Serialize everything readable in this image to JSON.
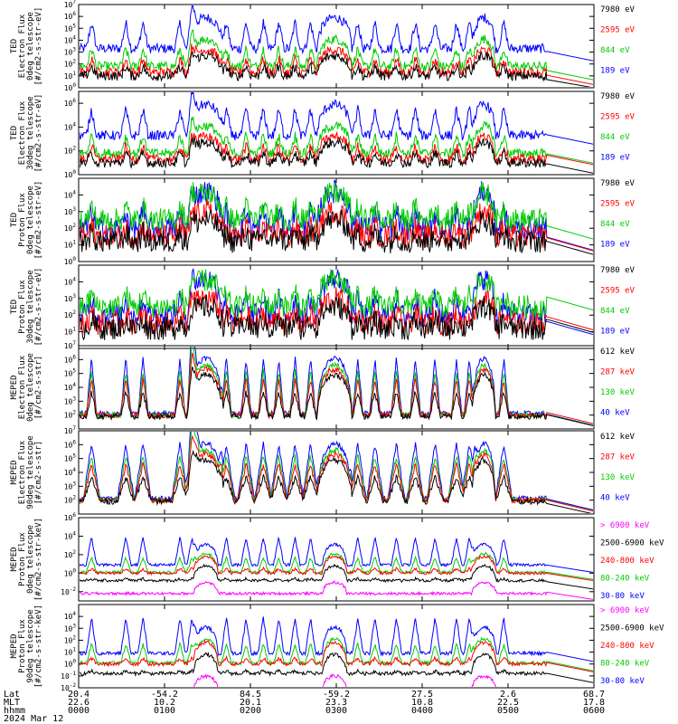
{
  "chart_data": {
    "type": "line",
    "colors": {
      "blue": "#0000ff",
      "red": "#ff0000",
      "green": "#00cc00",
      "black": "#000000",
      "magenta": "#ff00ff"
    },
    "panels": [
      {
        "ylabel": [
          "TED",
          "Electron Flux",
          "0deg telescope",
          "[#/cm2-s-str-eV]"
        ],
        "yscale": "log",
        "ylim_exp": [
          0,
          7
        ],
        "yticks_exp": [
          0,
          1,
          2,
          3,
          4,
          5,
          6,
          7
        ],
        "legend": [
          {
            "label": "7980 eV",
            "color": "#000000"
          },
          {
            "label": "2595 eV",
            "color": "#ff0000"
          },
          {
            "label": "844 eV",
            "color": "#00cc00"
          },
          {
            "label": "189 eV",
            "color": "#0000ff"
          }
        ]
      },
      {
        "ylabel": [
          "TED",
          "Electron Flux",
          "30deg telescope",
          "[#/cm2-s-str-eV]"
        ],
        "yscale": "log",
        "ylim_exp": [
          0,
          7
        ],
        "yticks_exp": [
          0,
          2,
          4,
          6
        ],
        "legend": [
          {
            "label": "7980 eV",
            "color": "#000000"
          },
          {
            "label": "2595 eV",
            "color": "#ff0000"
          },
          {
            "label": "844 eV",
            "color": "#00cc00"
          },
          {
            "label": "189 eV",
            "color": "#0000ff"
          }
        ]
      },
      {
        "ylabel": [
          "TED",
          "Proton Flux",
          "0deg telescope",
          "[#/cm2-s-str-eV]"
        ],
        "yscale": "log",
        "ylim_exp": [
          0,
          5
        ],
        "yticks_exp": [
          0,
          1,
          2,
          3,
          4
        ],
        "legend": [
          {
            "label": "7980 eV",
            "color": "#000000"
          },
          {
            "label": "2595 eV",
            "color": "#ff0000"
          },
          {
            "label": "844 eV",
            "color": "#00cc00"
          },
          {
            "label": "189 eV",
            "color": "#0000ff"
          }
        ]
      },
      {
        "ylabel": [
          "TED",
          "Proton Flux",
          "30deg telescope",
          "[#/cm2-s-str-eV]"
        ],
        "yscale": "log",
        "ylim_exp": [
          0,
          5
        ],
        "yticks_exp": [
          1,
          2,
          3,
          4
        ],
        "legend": [
          {
            "label": "7980 eV",
            "color": "#000000"
          },
          {
            "label": "2595 eV",
            "color": "#ff0000"
          },
          {
            "label": "844 eV",
            "color": "#00cc00"
          },
          {
            "label": "189 eV",
            "color": "#0000ff"
          }
        ]
      },
      {
        "ylabel": [
          "MEPED",
          "Electron Flux",
          "0deg telescope",
          "[#/cm2-s-str]"
        ],
        "yscale": "log",
        "ylim_exp": [
          1,
          7
        ],
        "yticks_exp": [
          2,
          3,
          4,
          5,
          6,
          7
        ],
        "legend": [
          {
            "label": "612 keV",
            "color": "#000000"
          },
          {
            "label": "287 keV",
            "color": "#ff0000"
          },
          {
            "label": "130 keV",
            "color": "#00cc00"
          },
          {
            "label": "40 keV",
            "color": "#0000ff"
          }
        ]
      },
      {
        "ylabel": [
          "MEPED",
          "Electron Flux",
          "90deg telescope",
          "[#/cm2-s-str]"
        ],
        "yscale": "log",
        "ylim_exp": [
          1,
          7
        ],
        "yticks_exp": [
          2,
          3,
          4,
          5,
          6,
          7
        ],
        "legend": [
          {
            "label": "612 keV",
            "color": "#000000"
          },
          {
            "label": "287 keV",
            "color": "#ff0000"
          },
          {
            "label": "130 keV",
            "color": "#00cc00"
          },
          {
            "label": "40 keV",
            "color": "#0000ff"
          }
        ]
      },
      {
        "ylabel": [
          "MEPED",
          "Proton Flux",
          "0deg telescope",
          "[#/cm2-s-str-keV]"
        ],
        "yscale": "log",
        "ylim_exp": [
          -3,
          6
        ],
        "yticks_exp": [
          -2,
          0,
          2,
          4,
          6
        ],
        "legend": [
          {
            "label": "> 6900 keV",
            "color": "#ff00ff"
          },
          {
            "label": "2500-6900 keV",
            "color": "#000000"
          },
          {
            "label": "240-800 keV",
            "color": "#ff0000"
          },
          {
            "label": "80-240 keV",
            "color": "#00cc00"
          },
          {
            "label": "30-80 keV",
            "color": "#0000ff"
          }
        ]
      },
      {
        "ylabel": [
          "MEPED",
          "Proton Flux",
          "90deg telescope",
          "[#/cm2-s-str-keV]"
        ],
        "yscale": "log",
        "ylim_exp": [
          -2,
          5
        ],
        "yticks_exp": [
          -2,
          -1,
          0,
          1,
          2,
          3,
          4
        ],
        "legend": [
          {
            "label": "> 6900 keV",
            "color": "#ff00ff"
          },
          {
            "label": "2500-6900 keV",
            "color": "#000000"
          },
          {
            "label": "240-800 keV",
            "color": "#ff0000"
          },
          {
            "label": "80-240 keV",
            "color": "#00cc00"
          },
          {
            "label": "30-80 keV",
            "color": "#0000ff"
          }
        ]
      }
    ],
    "xaxis": {
      "row_labels": [
        "Lat",
        "MLT",
        "hhmm",
        "2024 Mar 12"
      ],
      "ticks": [
        {
          "hours": 0,
          "lat": "20.4",
          "mlt": "22.6",
          "hhmm": "0000"
        },
        {
          "hours": 1,
          "lat": "-54.2",
          "mlt": "10.2",
          "hhmm": "0100"
        },
        {
          "hours": 2,
          "lat": "84.5",
          "mlt": "20.1",
          "hhmm": "0200"
        },
        {
          "hours": 3,
          "lat": "-59.2",
          "mlt": "23.3",
          "hhmm": "0300"
        },
        {
          "hours": 4,
          "lat": "27.5",
          "mlt": "10.8",
          "hhmm": "0400"
        },
        {
          "hours": 5,
          "lat": "2.6",
          "mlt": "22.5",
          "hhmm": "0500"
        },
        {
          "hours": 6,
          "lat": "68.7",
          "mlt": "17.8",
          "hhmm": "0600"
        }
      ],
      "range_hours": [
        0,
        6
      ]
    },
    "passes_hours": [
      {
        "center": 1.48,
        "width": 0.2,
        "kind": "proton_belt"
      },
      {
        "center": 2.98,
        "width": 0.2,
        "kind": "proton_belt"
      },
      {
        "center": 4.72,
        "width": 0.13,
        "kind": "proton_belt"
      }
    ]
  }
}
